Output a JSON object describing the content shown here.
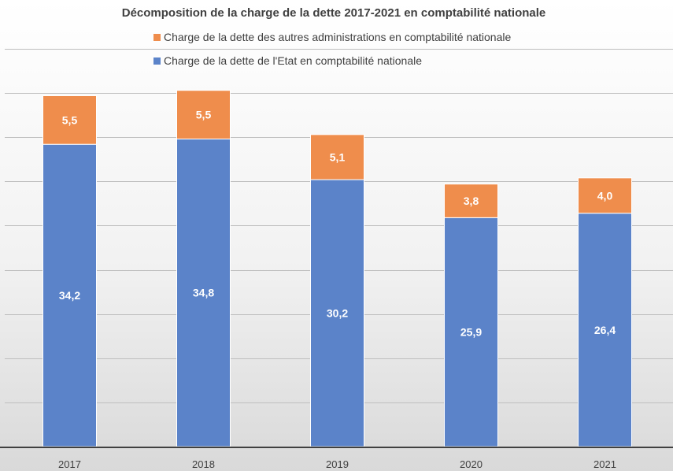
{
  "chart_data": {
    "type": "bar",
    "stacked": true,
    "title": "Décomposition de la charge de la dette 2017-2021 en comptabilité nationale",
    "categories": [
      "2017",
      "2018",
      "2019",
      "2020",
      "2021"
    ],
    "series": [
      {
        "name": "Charge de la dette de l'Etat en comptabilité nationale",
        "color": "#5b83c9",
        "values": [
          34.2,
          34.8,
          30.2,
          25.9,
          26.4
        ],
        "labels": [
          "34,2",
          "34,8",
          "30,2",
          "25,9",
          "26,4"
        ]
      },
      {
        "name": "Charge de la dette des autres administrations en comptabilité nationale",
        "color": "#ef8d4c",
        "values": [
          5.5,
          5.5,
          5.1,
          3.8,
          4.0
        ],
        "labels": [
          "5,5",
          "5,5",
          "5,1",
          "3,8",
          "4,0"
        ]
      }
    ],
    "legend_order": [
      1,
      0
    ],
    "legend_position": "top",
    "ylim": [
      0,
      45
    ],
    "y_gridline_step": 5,
    "y_tick_labels_visible": false,
    "grid": true,
    "xlabel": "",
    "ylabel": ""
  }
}
